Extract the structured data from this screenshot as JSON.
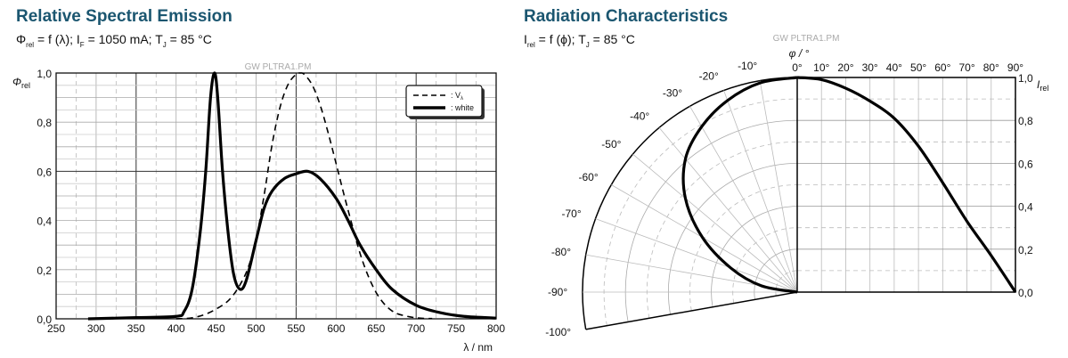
{
  "chart_data": [
    {
      "type": "line",
      "title": "Relative Spectral Emission",
      "subtitle": {
        "p1": "Φ",
        "s1": "rel",
        "p2": " = f (λ); I",
        "s2": "F",
        "p3": " = 1050 mA; T",
        "s3": "J",
        "p4": " = 85 °C"
      },
      "watermark": "GW PLTRA1.PM",
      "ylabel": {
        "main": "Φ",
        "sub": "rel"
      },
      "xlabel": "λ / nm",
      "xlim": [
        250,
        800
      ],
      "ylim": [
        0,
        1
      ],
      "xticks": [
        250,
        300,
        350,
        400,
        450,
        500,
        550,
        600,
        650,
        700,
        750,
        800
      ],
      "yticks": [
        "0,0",
        "0,2",
        "0,4",
        "0,6",
        "0,8",
        "1,0"
      ],
      "grid": true,
      "legend_placement": "top-right",
      "series": [
        {
          "name": "V",
          "name_sub": "λ",
          "style": "dashed",
          "x": [
            400,
            420,
            440,
            460,
            470,
            480,
            490,
            500,
            510,
            520,
            530,
            540,
            550,
            555,
            560,
            570,
            580,
            590,
            600,
            610,
            620,
            630,
            640,
            650,
            660,
            670,
            680,
            700,
            720
          ],
          "y": [
            0.0004,
            0.004,
            0.023,
            0.06,
            0.091,
            0.139,
            0.208,
            0.323,
            0.503,
            0.71,
            0.862,
            0.954,
            0.995,
            1.0,
            0.995,
            0.952,
            0.87,
            0.757,
            0.631,
            0.503,
            0.381,
            0.265,
            0.175,
            0.107,
            0.061,
            0.032,
            0.017,
            0.004,
            0.001
          ]
        },
        {
          "name": "white",
          "style": "solid",
          "x": [
            290,
            350,
            400,
            410,
            420,
            430,
            437,
            443,
            448,
            452,
            458,
            465,
            472,
            480,
            488,
            500,
            510,
            520,
            535,
            550,
            565,
            580,
            600,
            615,
            630,
            650,
            670,
            700,
            730,
            760,
            800
          ],
          "y": [
            0.0,
            0.005,
            0.01,
            0.03,
            0.12,
            0.35,
            0.6,
            0.9,
            1.0,
            0.9,
            0.6,
            0.35,
            0.18,
            0.12,
            0.16,
            0.32,
            0.45,
            0.52,
            0.57,
            0.59,
            0.6,
            0.57,
            0.49,
            0.4,
            0.3,
            0.2,
            0.12,
            0.055,
            0.025,
            0.01,
            0.003
          ]
        }
      ]
    },
    {
      "type": "polar",
      "title": "Radiation Characteristics",
      "subtitle": {
        "p1": "I",
        "s1": "rel",
        "p2": " = f (ϕ); T",
        "s2": "J",
        "p3": " = 85 °C"
      },
      "watermark": "GW PLTRA1.PM",
      "angle_label": "φ / °",
      "ylabel": {
        "main": "I",
        "sub": "rel"
      },
      "angle_ticks": [
        "-100°",
        "-90°",
        "-80°",
        "-70°",
        "-60°",
        "-50°",
        "-40°",
        "-30°",
        "-20°",
        "-10°",
        "0°",
        "10°",
        "20°",
        "30°",
        "40°",
        "50°",
        "60°",
        "70°",
        "80°",
        "90°"
      ],
      "yticks": [
        "0,0",
        "0,2",
        "0,4",
        "0,6",
        "0,8",
        "1,0"
      ],
      "ylim": [
        0,
        1
      ],
      "grid": true,
      "series": [
        {
          "angle": [
            0,
            10,
            20,
            30,
            40,
            50,
            60,
            70,
            80,
            90
          ],
          "value": [
            1.0,
            0.99,
            0.95,
            0.89,
            0.81,
            0.68,
            0.51,
            0.33,
            0.17,
            0.0
          ]
        }
      ]
    }
  ]
}
